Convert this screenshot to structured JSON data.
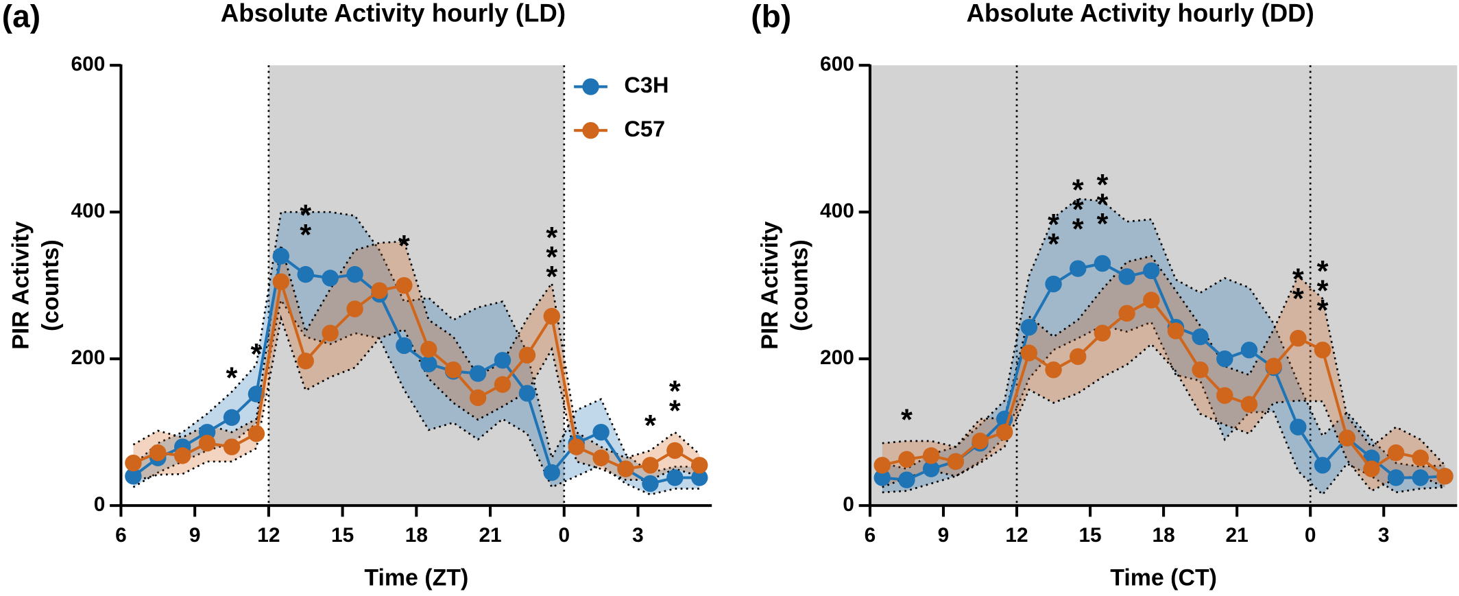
{
  "chart_data": [
    {
      "type": "line",
      "panel_label": "(a)",
      "title": "Absolute Activity hourly (LD)",
      "xlabel": "Time (ZT)",
      "ylabel": [
        "PIR Activity",
        "(counts)"
      ],
      "x": [
        6.5,
        7.5,
        8.5,
        9.5,
        10.5,
        11.5,
        12.5,
        13.5,
        14.5,
        15.5,
        16.5,
        17.5,
        18.5,
        19.5,
        20.5,
        21.5,
        22.5,
        23.5,
        24.5,
        25.5,
        26.5,
        27.5,
        28.5,
        29.5
      ],
      "series": [
        {
          "name": "C3H",
          "color": "#1f74b6",
          "values": [
            40,
            65,
            80,
            100,
            120,
            152,
            340,
            315,
            310,
            315,
            288,
            218,
            193,
            183,
            180,
            198,
            153,
            45,
            85,
            100,
            50,
            30,
            38,
            38
          ],
          "errors": [
            15,
            20,
            20,
            25,
            35,
            40,
            60,
            85,
            90,
            80,
            60,
            60,
            90,
            70,
            90,
            80,
            55,
            20,
            45,
            45,
            20,
            15,
            15,
            15
          ]
        },
        {
          "name": "C57",
          "color": "#d0661c",
          "values": [
            58,
            72,
            68,
            85,
            80,
            98,
            305,
            197,
            235,
            268,
            293,
            300,
            213,
            185,
            147,
            165,
            205,
            258,
            80,
            65,
            50,
            55,
            75,
            55
          ],
          "errors": [
            25,
            30,
            25,
            25,
            20,
            20,
            50,
            40,
            60,
            80,
            65,
            60,
            40,
            45,
            30,
            30,
            50,
            45,
            20,
            15,
            15,
            20,
            25,
            15
          ]
        }
      ],
      "annotations": [
        {
          "x": 10.5,
          "text": "*"
        },
        {
          "x": 11.5,
          "text": "*"
        },
        {
          "x": 13.5,
          "text": "**"
        },
        {
          "x": 17.5,
          "text": "*"
        },
        {
          "x": 23.5,
          "text": "***"
        },
        {
          "x": 27.5,
          "text": "*"
        },
        {
          "x": 28.5,
          "text": "**"
        }
      ],
      "shaded": [
        12,
        24
      ],
      "vlines": [
        12,
        24
      ],
      "xlim": [
        6,
        30
      ],
      "xticks": [
        6,
        9,
        12,
        15,
        18,
        21,
        {
          "value": 24,
          "label": "0"
        },
        {
          "value": 27,
          "label": "3"
        }
      ],
      "ylim": [
        0,
        600
      ],
      "yticks": [
        0,
        200,
        400,
        600
      ],
      "legend": true
    },
    {
      "type": "line",
      "panel_label": "(b)",
      "title": "Absolute Activity hourly (DD)",
      "xlabel": "Time (CT)",
      "ylabel": [
        "PIR Activity",
        "(counts)"
      ],
      "x": [
        6.5,
        7.5,
        8.5,
        9.5,
        10.5,
        11.5,
        12.5,
        13.5,
        14.5,
        15.5,
        16.5,
        17.5,
        18.5,
        19.5,
        20.5,
        21.5,
        22.5,
        23.5,
        24.5,
        25.5,
        26.5,
        27.5,
        28.5,
        29.5
      ],
      "series": [
        {
          "color": "#1f74b6",
          "values": [
            38,
            35,
            50,
            60,
            85,
            118,
            243,
            302,
            323,
            330,
            312,
            320,
            243,
            230,
            200,
            212,
            188,
            107,
            55,
            92,
            65,
            38,
            38,
            40
          ],
          "errors": [
            20,
            15,
            20,
            20,
            25,
            25,
            70,
            90,
            95,
            85,
            75,
            70,
            65,
            60,
            110,
            85,
            60,
            60,
            40,
            35,
            25,
            20,
            15,
            15
          ]
        },
        {
          "color": "#d0661c",
          "values": [
            55,
            63,
            68,
            60,
            88,
            100,
            208,
            185,
            203,
            235,
            262,
            280,
            238,
            185,
            150,
            138,
            190,
            228,
            212,
            92,
            50,
            72,
            65,
            40
          ],
          "errors": [
            30,
            25,
            20,
            20,
            30,
            20,
            50,
            45,
            50,
            60,
            70,
            60,
            55,
            60,
            40,
            40,
            50,
            85,
            70,
            30,
            30,
            35,
            25,
            15
          ]
        }
      ],
      "annotations": [
        {
          "x": 7.5,
          "text": "*"
        },
        {
          "x": 13.5,
          "text": "**"
        },
        {
          "x": 14.5,
          "text": "***"
        },
        {
          "x": 15.5,
          "text": "***"
        },
        {
          "x": 23.5,
          "text": "**"
        },
        {
          "x": 24.5,
          "text": "***"
        }
      ],
      "shaded": [
        6,
        30
      ],
      "vlines": [
        12,
        24
      ],
      "xlim": [
        6,
        30
      ],
      "xticks": [
        6,
        9,
        12,
        15,
        18,
        21,
        {
          "value": 24,
          "label": "0"
        },
        {
          "value": 27,
          "label": "3"
        }
      ],
      "ylim": [
        0,
        600
      ],
      "yticks": [
        0,
        200,
        400,
        600
      ],
      "legend": false
    }
  ]
}
